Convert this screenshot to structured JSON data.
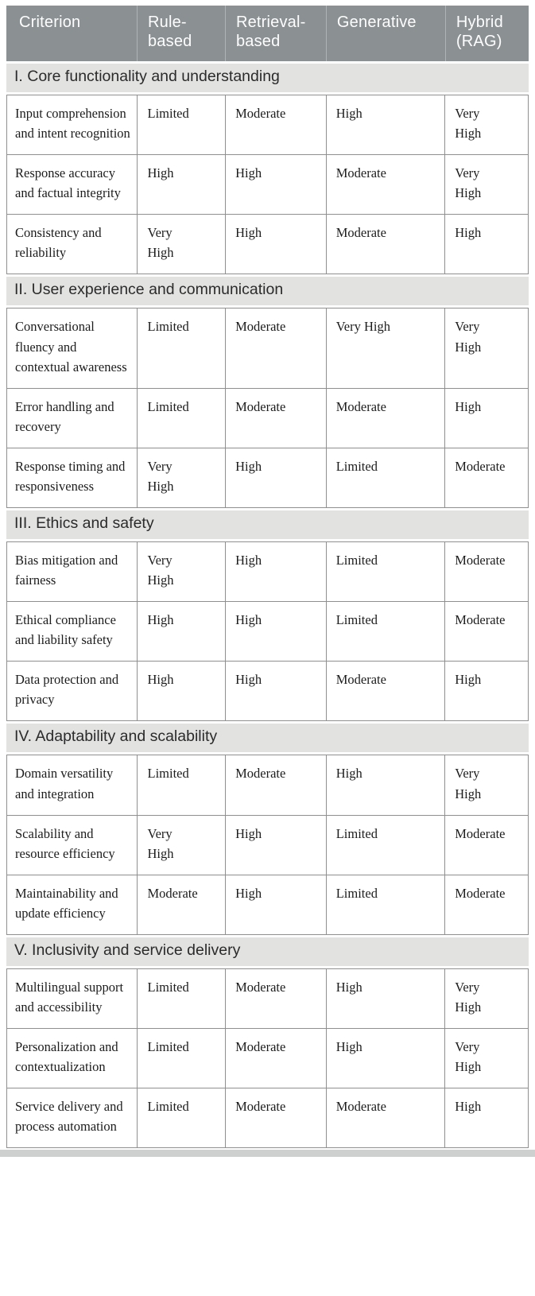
{
  "table": {
    "columns": [
      "Criterion",
      "Rule-based",
      "Retrieval-based",
      "Generative",
      "Hybrid (RAG)"
    ],
    "sections": [
      {
        "title": "I. Core functionality and understanding",
        "rows": [
          {
            "criterion": "Input comprehension and intent recognition",
            "values": [
              "Limited",
              "Moderate",
              "High",
              "Very High"
            ]
          },
          {
            "criterion": "Response accuracy and factual integrity",
            "values": [
              "High",
              "High",
              "Moderate",
              "Very High"
            ]
          },
          {
            "criterion": "Consistency and reliability",
            "values": [
              "Very High",
              "High",
              "Moderate",
              "High"
            ]
          }
        ]
      },
      {
        "title": "II. User experience and communication",
        "rows": [
          {
            "criterion": "Conversational fluency and contextual awareness",
            "values": [
              "Limited",
              "Moderate",
              "Very High",
              "Very High"
            ]
          },
          {
            "criterion": "Error handling and recovery",
            "values": [
              "Limited",
              "Moderate",
              "Moderate",
              "High"
            ]
          },
          {
            "criterion": "Response timing and responsiveness",
            "values": [
              "Very High",
              "High",
              "Limited",
              "Moderate"
            ]
          }
        ]
      },
      {
        "title": "III. Ethics and safety",
        "rows": [
          {
            "criterion": "Bias mitigation and fairness",
            "values": [
              "Very High",
              "High",
              "Limited",
              "Moderate"
            ]
          },
          {
            "criterion": "Ethical compliance and liability safety",
            "values": [
              "High",
              "High",
              "Limited",
              "Moderate"
            ]
          },
          {
            "criterion": "Data protection and privacy",
            "values": [
              "High",
              "High",
              "Moderate",
              "High"
            ]
          }
        ]
      },
      {
        "title": "IV. Adaptability and scalability",
        "rows": [
          {
            "criterion": "Domain versatility and integration",
            "values": [
              "Limited",
              "Moderate",
              "High",
              "Very High"
            ]
          },
          {
            "criterion": "Scalability and resource efficiency",
            "values": [
              "Very High",
              "High",
              "Limited",
              "Moderate"
            ]
          },
          {
            "criterion": "Maintainability and update efficiency",
            "values": [
              "Moderate",
              "High",
              "Limited",
              "Moderate"
            ]
          }
        ]
      },
      {
        "title": "V. Inclusivity and service delivery",
        "rows": [
          {
            "criterion": "Multilingual support and accessibility",
            "values": [
              "Limited",
              "Moderate",
              "High",
              "Very High"
            ]
          },
          {
            "criterion": "Personalization and contextualization",
            "values": [
              "Limited",
              "Moderate",
              "High",
              "Very High"
            ]
          },
          {
            "criterion": "Service delivery and process automation",
            "values": [
              "Limited",
              "Moderate",
              "Moderate",
              "High"
            ]
          }
        ]
      }
    ]
  },
  "colors": {
    "header_bg": "#8b9193",
    "header_text": "#fdfdfd",
    "header_divider": "#aeb3b5",
    "section_band_bg": "#e2e2e1",
    "section_band_text": "#2b2b2b",
    "body_border": "#8f8f8f",
    "body_text": "#1c1c1c",
    "page_bg": "#ffffff",
    "bottom_bar": "#cdd0cf"
  }
}
